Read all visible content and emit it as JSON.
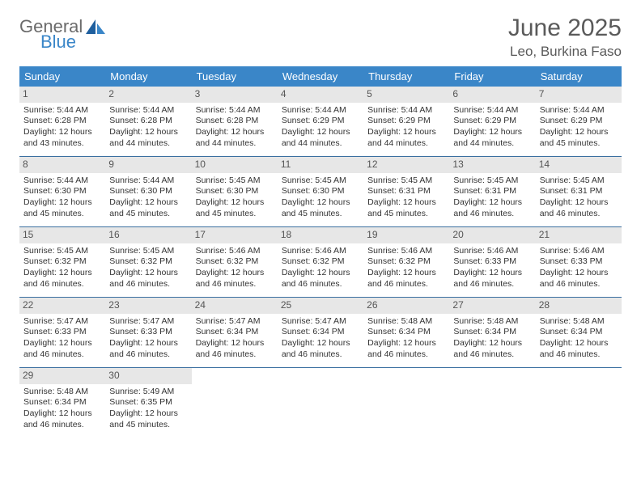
{
  "brand": {
    "word1": "General",
    "word2": "Blue"
  },
  "colors": {
    "header_bg": "#3a86c8",
    "daynum_bg": "#e7e7e7",
    "week_divider": "#3a6fa0",
    "text": "#333333",
    "title_text": "#5a5a5a",
    "logo_gray": "#6b6b6b",
    "logo_blue": "#3a86c8",
    "background": "#ffffff"
  },
  "typography": {
    "title_fontsize": 30,
    "location_fontsize": 17,
    "dow_fontsize": 13,
    "daynum_fontsize": 12,
    "cell_fontsize": 10.5
  },
  "layout": {
    "columns": 7,
    "cell_min_height": 86
  },
  "title": "June 2025",
  "location": "Leo, Burkina Faso",
  "days_of_week": [
    "Sunday",
    "Monday",
    "Tuesday",
    "Wednesday",
    "Thursday",
    "Friday",
    "Saturday"
  ],
  "labels": {
    "sunrise": "Sunrise:",
    "sunset": "Sunset:",
    "daylight": "Daylight:"
  },
  "weeks": [
    [
      {
        "n": "1",
        "sunrise": "5:44 AM",
        "sunset": "6:28 PM",
        "dl1": "12 hours",
        "dl2": "and 43 minutes."
      },
      {
        "n": "2",
        "sunrise": "5:44 AM",
        "sunset": "6:28 PM",
        "dl1": "12 hours",
        "dl2": "and 44 minutes."
      },
      {
        "n": "3",
        "sunrise": "5:44 AM",
        "sunset": "6:28 PM",
        "dl1": "12 hours",
        "dl2": "and 44 minutes."
      },
      {
        "n": "4",
        "sunrise": "5:44 AM",
        "sunset": "6:29 PM",
        "dl1": "12 hours",
        "dl2": "and 44 minutes."
      },
      {
        "n": "5",
        "sunrise": "5:44 AM",
        "sunset": "6:29 PM",
        "dl1": "12 hours",
        "dl2": "and 44 minutes."
      },
      {
        "n": "6",
        "sunrise": "5:44 AM",
        "sunset": "6:29 PM",
        "dl1": "12 hours",
        "dl2": "and 44 minutes."
      },
      {
        "n": "7",
        "sunrise": "5:44 AM",
        "sunset": "6:29 PM",
        "dl1": "12 hours",
        "dl2": "and 45 minutes."
      }
    ],
    [
      {
        "n": "8",
        "sunrise": "5:44 AM",
        "sunset": "6:30 PM",
        "dl1": "12 hours",
        "dl2": "and 45 minutes."
      },
      {
        "n": "9",
        "sunrise": "5:44 AM",
        "sunset": "6:30 PM",
        "dl1": "12 hours",
        "dl2": "and 45 minutes."
      },
      {
        "n": "10",
        "sunrise": "5:45 AM",
        "sunset": "6:30 PM",
        "dl1": "12 hours",
        "dl2": "and 45 minutes."
      },
      {
        "n": "11",
        "sunrise": "5:45 AM",
        "sunset": "6:30 PM",
        "dl1": "12 hours",
        "dl2": "and 45 minutes."
      },
      {
        "n": "12",
        "sunrise": "5:45 AM",
        "sunset": "6:31 PM",
        "dl1": "12 hours",
        "dl2": "and 45 minutes."
      },
      {
        "n": "13",
        "sunrise": "5:45 AM",
        "sunset": "6:31 PM",
        "dl1": "12 hours",
        "dl2": "and 46 minutes."
      },
      {
        "n": "14",
        "sunrise": "5:45 AM",
        "sunset": "6:31 PM",
        "dl1": "12 hours",
        "dl2": "and 46 minutes."
      }
    ],
    [
      {
        "n": "15",
        "sunrise": "5:45 AM",
        "sunset": "6:32 PM",
        "dl1": "12 hours",
        "dl2": "and 46 minutes."
      },
      {
        "n": "16",
        "sunrise": "5:45 AM",
        "sunset": "6:32 PM",
        "dl1": "12 hours",
        "dl2": "and 46 minutes."
      },
      {
        "n": "17",
        "sunrise": "5:46 AM",
        "sunset": "6:32 PM",
        "dl1": "12 hours",
        "dl2": "and 46 minutes."
      },
      {
        "n": "18",
        "sunrise": "5:46 AM",
        "sunset": "6:32 PM",
        "dl1": "12 hours",
        "dl2": "and 46 minutes."
      },
      {
        "n": "19",
        "sunrise": "5:46 AM",
        "sunset": "6:32 PM",
        "dl1": "12 hours",
        "dl2": "and 46 minutes."
      },
      {
        "n": "20",
        "sunrise": "5:46 AM",
        "sunset": "6:33 PM",
        "dl1": "12 hours",
        "dl2": "and 46 minutes."
      },
      {
        "n": "21",
        "sunrise": "5:46 AM",
        "sunset": "6:33 PM",
        "dl1": "12 hours",
        "dl2": "and 46 minutes."
      }
    ],
    [
      {
        "n": "22",
        "sunrise": "5:47 AM",
        "sunset": "6:33 PM",
        "dl1": "12 hours",
        "dl2": "and 46 minutes."
      },
      {
        "n": "23",
        "sunrise": "5:47 AM",
        "sunset": "6:33 PM",
        "dl1": "12 hours",
        "dl2": "and 46 minutes."
      },
      {
        "n": "24",
        "sunrise": "5:47 AM",
        "sunset": "6:34 PM",
        "dl1": "12 hours",
        "dl2": "and 46 minutes."
      },
      {
        "n": "25",
        "sunrise": "5:47 AM",
        "sunset": "6:34 PM",
        "dl1": "12 hours",
        "dl2": "and 46 minutes."
      },
      {
        "n": "26",
        "sunrise": "5:48 AM",
        "sunset": "6:34 PM",
        "dl1": "12 hours",
        "dl2": "and 46 minutes."
      },
      {
        "n": "27",
        "sunrise": "5:48 AM",
        "sunset": "6:34 PM",
        "dl1": "12 hours",
        "dl2": "and 46 minutes."
      },
      {
        "n": "28",
        "sunrise": "5:48 AM",
        "sunset": "6:34 PM",
        "dl1": "12 hours",
        "dl2": "and 46 minutes."
      }
    ],
    [
      {
        "n": "29",
        "sunrise": "5:48 AM",
        "sunset": "6:34 PM",
        "dl1": "12 hours",
        "dl2": "and 46 minutes."
      },
      {
        "n": "30",
        "sunrise": "5:49 AM",
        "sunset": "6:35 PM",
        "dl1": "12 hours",
        "dl2": "and 45 minutes."
      },
      null,
      null,
      null,
      null,
      null
    ]
  ]
}
